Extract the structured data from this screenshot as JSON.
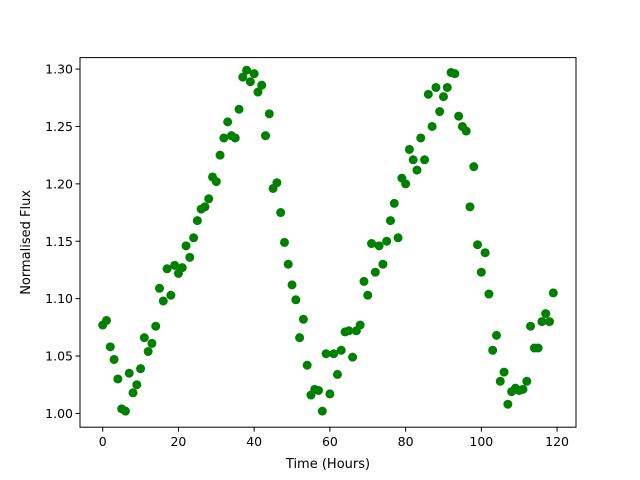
{
  "chart_data": {
    "type": "scatter",
    "xlabel": "Time (Hours)",
    "ylabel": "Normalised Flux",
    "xlim": [
      -6,
      125
    ],
    "ylim": [
      0.988,
      1.31
    ],
    "xticks": [
      0,
      20,
      40,
      60,
      80,
      100,
      120
    ],
    "yticks": [
      1.0,
      1.05,
      1.1,
      1.15,
      1.2,
      1.25,
      1.3
    ],
    "ytick_labels": [
      "1.00",
      "1.05",
      "1.10",
      "1.15",
      "1.20",
      "1.25",
      "1.30"
    ],
    "grid": false,
    "marker_color": "#008000",
    "series": [
      {
        "x": [
          0,
          1,
          2,
          3,
          4,
          5,
          6,
          7,
          8,
          9,
          10,
          11,
          12,
          13,
          14,
          15,
          16,
          17,
          18,
          19,
          20,
          21,
          22,
          23,
          24,
          25,
          26,
          27,
          28,
          29,
          30,
          31,
          32,
          33,
          34,
          35,
          36,
          37,
          38,
          39,
          40,
          41,
          42,
          43,
          44,
          45,
          46,
          47,
          48,
          49,
          50,
          51,
          52,
          53,
          54,
          55,
          56,
          57,
          58,
          59,
          60,
          61,
          62,
          63,
          64,
          65,
          66,
          67,
          68,
          69,
          70,
          71,
          72,
          73,
          74,
          75,
          76,
          77,
          78,
          79,
          80,
          81,
          82,
          83,
          84,
          85,
          86,
          87,
          88,
          89,
          90,
          91,
          92,
          93,
          94,
          95,
          96,
          97,
          98,
          99,
          100,
          101,
          102,
          103,
          104,
          105,
          106,
          107,
          108,
          109,
          110,
          111,
          112,
          113,
          114,
          115,
          116,
          117,
          118,
          119
        ],
        "y": [
          1.077,
          1.081,
          1.058,
          1.047,
          1.03,
          1.004,
          1.002,
          1.035,
          1.018,
          1.025,
          1.039,
          1.066,
          1.054,
          1.061,
          1.076,
          1.109,
          1.098,
          1.126,
          1.103,
          1.129,
          1.122,
          1.127,
          1.146,
          1.136,
          1.153,
          1.168,
          1.178,
          1.18,
          1.187,
          1.206,
          1.202,
          1.225,
          1.24,
          1.254,
          1.242,
          1.24,
          1.265,
          1.293,
          1.299,
          1.289,
          1.296,
          1.28,
          1.286,
          1.242,
          1.261,
          1.196,
          1.201,
          1.175,
          1.149,
          1.13,
          1.112,
          1.099,
          1.066,
          1.082,
          1.042,
          1.016,
          1.021,
          1.02,
          1.002,
          1.052,
          1.017,
          1.052,
          1.034,
          1.055,
          1.071,
          1.072,
          1.049,
          1.072,
          1.077,
          1.115,
          1.103,
          1.148,
          1.123,
          1.146,
          1.13,
          1.15,
          1.168,
          1.183,
          1.153,
          1.205,
          1.2,
          1.23,
          1.221,
          1.212,
          1.24,
          1.221,
          1.278,
          1.25,
          1.284,
          1.263,
          1.276,
          1.284,
          1.297,
          1.296,
          1.259,
          1.25,
          1.246,
          1.18,
          1.215,
          1.147,
          1.123,
          1.14,
          1.104,
          1.055,
          1.068,
          1.028,
          1.036,
          1.008,
          1.019,
          1.022,
          1.02,
          1.021,
          1.028,
          1.076,
          1.057,
          1.057,
          1.08,
          1.087,
          1.08,
          1.105
        ]
      }
    ]
  }
}
